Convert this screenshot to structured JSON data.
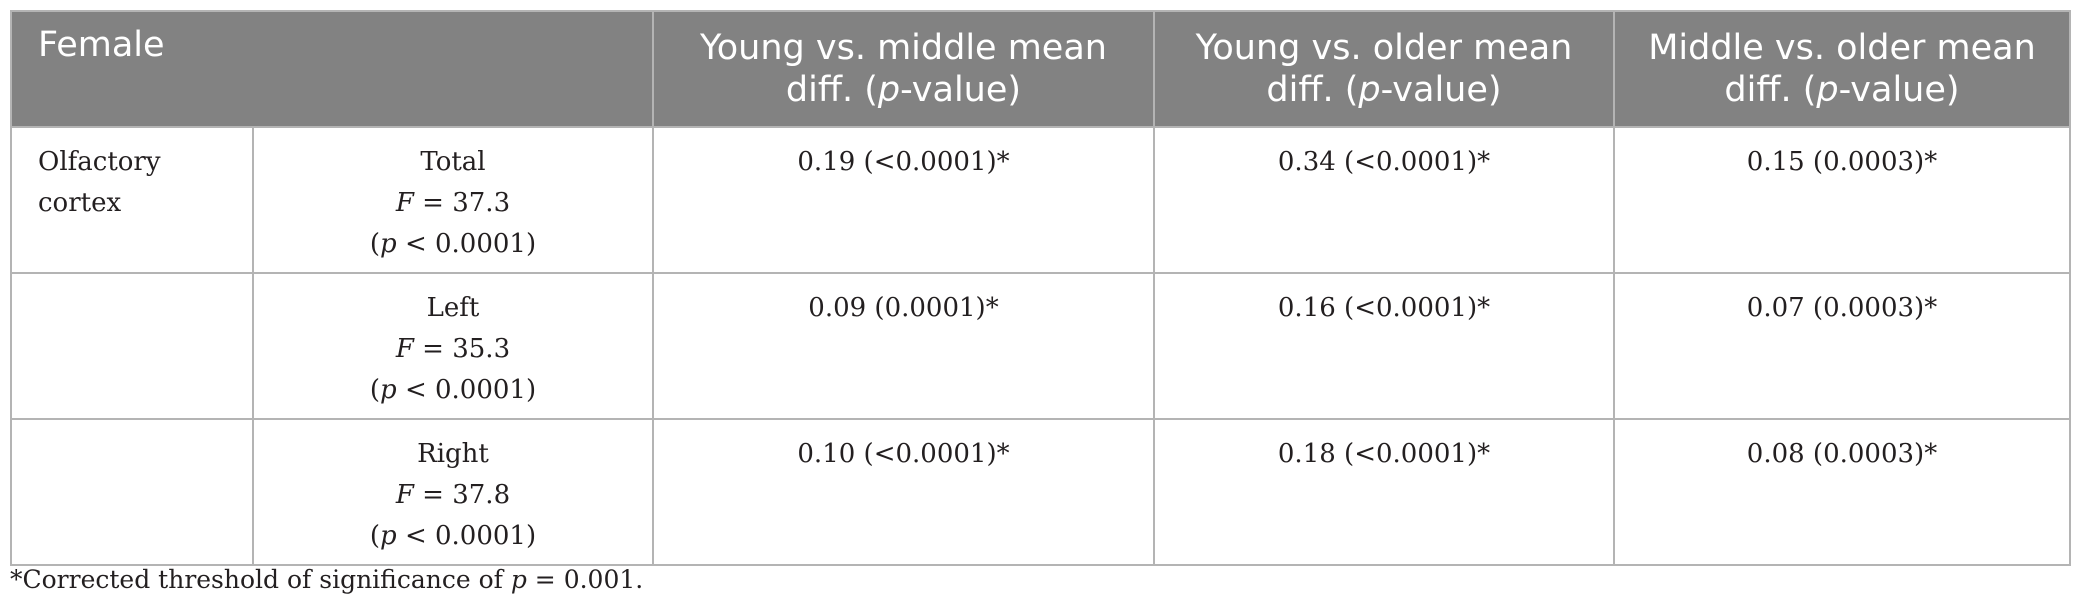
{
  "table": {
    "header": {
      "group": "Female",
      "col_young_middle_pre": "Young vs. middle mean diff. (",
      "col_young_older_pre": "Young vs. older mean diff. (",
      "col_middle_older_pre": "Middle vs. older mean diff. (",
      "p_letter": "p",
      "p_value_suffix": "-value)"
    },
    "rows": [
      {
        "region": "Olfactory cortex",
        "side": "Total",
        "f_value": " = 37.3",
        "p_value": " < 0.0001)",
        "young_middle": "0.19 (<0.0001)*",
        "young_older": "0.34 (<0.0001)*",
        "middle_older": "0.15 (0.0003)*"
      },
      {
        "region": "",
        "side": "Left",
        "f_value": " = 35.3",
        "p_value": " < 0.0001)",
        "young_middle": "0.09 (0.0001)*",
        "young_older": "0.16 (<0.0001)*",
        "middle_older": "0.07 (0.0003)*"
      },
      {
        "region": "",
        "side": "Right",
        "f_value": " = 37.8",
        "p_value": " < 0.0001)",
        "young_middle": "0.10 (<0.0001)*",
        "young_older": "0.18 (<0.0001)*",
        "middle_older": "0.08 (0.0003)*"
      }
    ],
    "labels": {
      "f_letter": "F",
      "p_letter": "p",
      "open_paren": "("
    }
  },
  "footnote": {
    "prefix": "*Corrected threshold of significance of ",
    "p_letter": "p",
    "suffix": " = 0.001."
  }
}
